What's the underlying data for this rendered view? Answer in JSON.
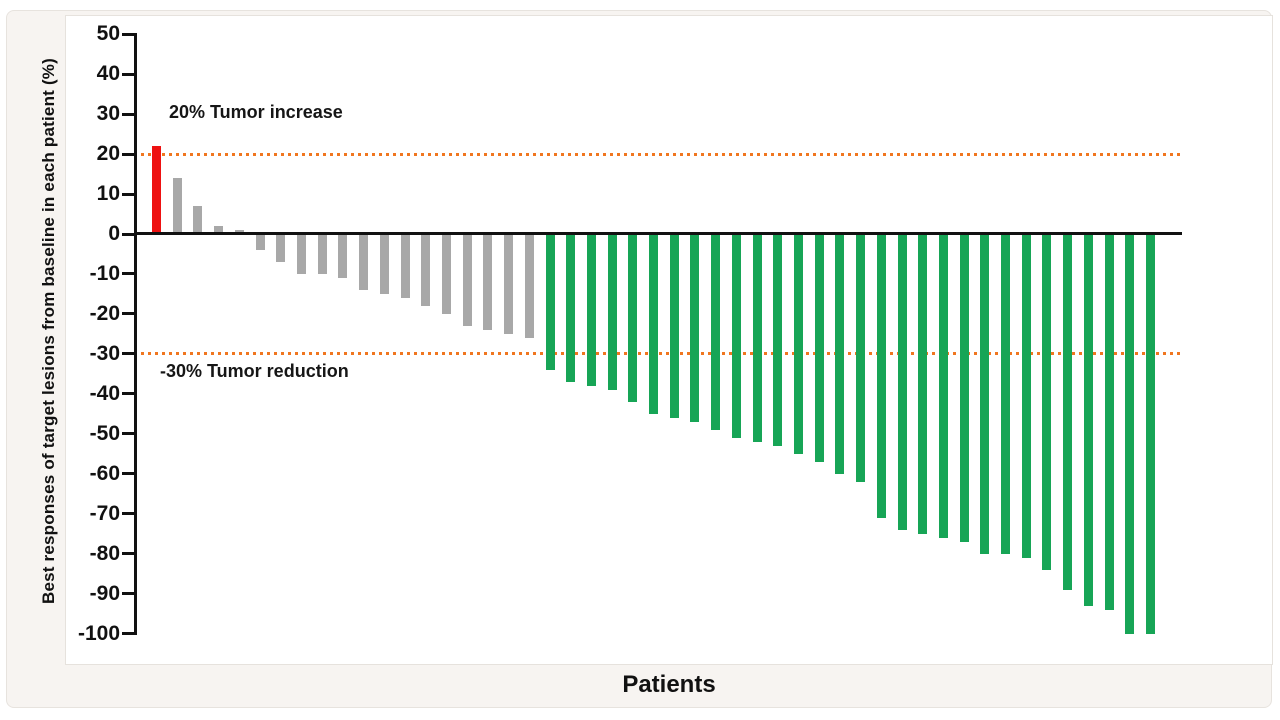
{
  "chart_data": {
    "type": "bar",
    "title": "",
    "xlabel": "Patients",
    "ylabel": "Best responses of target lesions from baseline in each patient (%)",
    "ylim": [
      -100,
      50
    ],
    "yticks": [
      50,
      40,
      30,
      20,
      10,
      0,
      -10,
      -20,
      -30,
      -40,
      -50,
      -60,
      -70,
      -80,
      -90,
      -100
    ],
    "grid": false,
    "legend": null,
    "annotations": [
      {
        "text": "20% Tumor increase",
        "y": 20
      },
      {
        "text": "-30% Tumor reduction",
        "y": -30
      }
    ],
    "reference_lines": [
      {
        "y": 20,
        "style": "dotted",
        "color": "#f0761f"
      },
      {
        "y": -30,
        "style": "dotted",
        "color": "#f0761f"
      }
    ],
    "color_rules": {
      "increase_threshold": 20,
      "reduction_threshold": -30
    },
    "colors": {
      "increase": "#ee1111",
      "stable": "#a8a8a8",
      "reduction": "#17a556",
      "axis": "#111111",
      "reference": "#f0761f"
    },
    "values": [
      22,
      14,
      7,
      2,
      1,
      -4,
      -7,
      -10,
      -10,
      -11,
      -14,
      -15,
      -16,
      -18,
      -20,
      -23,
      -24,
      -25,
      -26,
      -34,
      -37,
      -38,
      -39,
      -42,
      -45,
      -46,
      -47,
      -49,
      -51,
      -52,
      -53,
      -55,
      -57,
      -60,
      -62,
      -71,
      -74,
      -75,
      -76,
      -77,
      -80,
      -80,
      -81,
      -84,
      -89,
      -93,
      -94,
      -100,
      -100
    ]
  }
}
